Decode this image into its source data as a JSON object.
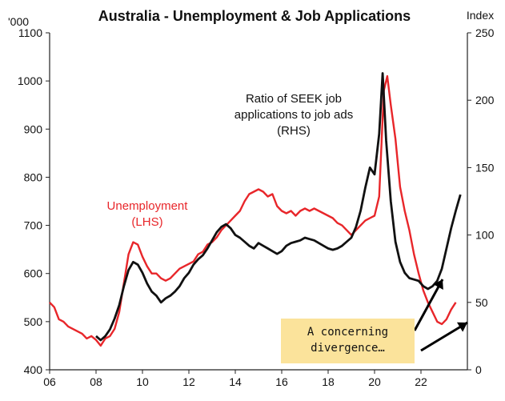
{
  "chart_data": {
    "type": "line",
    "title": "Australia - Unemployment & Job Applications",
    "y_left_unit": "'000",
    "y_right_unit": "Index",
    "y_left_range": [
      400,
      1100
    ],
    "y_right_range": [
      0,
      250
    ],
    "x_range": [
      2006,
      2024
    ],
    "x_ticks": [
      {
        "value": 2006,
        "label": "06"
      },
      {
        "value": 2008,
        "label": "08"
      },
      {
        "value": 2010,
        "label": "10"
      },
      {
        "value": 2012,
        "label": "12"
      },
      {
        "value": 2014,
        "label": "14"
      },
      {
        "value": 2016,
        "label": "16"
      },
      {
        "value": 2018,
        "label": "18"
      },
      {
        "value": 2020,
        "label": "20"
      },
      {
        "value": 2022,
        "label": "22"
      }
    ],
    "y_left_ticks": [
      400,
      500,
      600,
      700,
      800,
      900,
      1000,
      1100
    ],
    "y_right_ticks": [
      0,
      50,
      100,
      150,
      200,
      250
    ],
    "series": [
      {
        "name": "Unemployment",
        "label_lines": [
          "Unemployment",
          "(LHS)"
        ],
        "axis": "left",
        "color": "#e8262a",
        "points": [
          [
            2006.0,
            540
          ],
          [
            2006.2,
            530
          ],
          [
            2006.4,
            505
          ],
          [
            2006.6,
            500
          ],
          [
            2006.8,
            490
          ],
          [
            2007.0,
            485
          ],
          [
            2007.2,
            480
          ],
          [
            2007.4,
            475
          ],
          [
            2007.6,
            465
          ],
          [
            2007.8,
            470
          ],
          [
            2008.0,
            462
          ],
          [
            2008.2,
            450
          ],
          [
            2008.4,
            465
          ],
          [
            2008.6,
            470
          ],
          [
            2008.8,
            485
          ],
          [
            2009.0,
            520
          ],
          [
            2009.2,
            580
          ],
          [
            2009.4,
            640
          ],
          [
            2009.6,
            665
          ],
          [
            2009.8,
            660
          ],
          [
            2010.0,
            635
          ],
          [
            2010.2,
            615
          ],
          [
            2010.4,
            600
          ],
          [
            2010.6,
            600
          ],
          [
            2010.8,
            590
          ],
          [
            2011.0,
            585
          ],
          [
            2011.2,
            590
          ],
          [
            2011.4,
            600
          ],
          [
            2011.6,
            610
          ],
          [
            2011.8,
            615
          ],
          [
            2012.0,
            620
          ],
          [
            2012.2,
            625
          ],
          [
            2012.4,
            640
          ],
          [
            2012.6,
            645
          ],
          [
            2012.8,
            660
          ],
          [
            2013.0,
            665
          ],
          [
            2013.2,
            675
          ],
          [
            2013.4,
            690
          ],
          [
            2013.6,
            700
          ],
          [
            2013.8,
            710
          ],
          [
            2014.0,
            720
          ],
          [
            2014.2,
            730
          ],
          [
            2014.4,
            750
          ],
          [
            2014.6,
            765
          ],
          [
            2014.8,
            770
          ],
          [
            2015.0,
            775
          ],
          [
            2015.2,
            770
          ],
          [
            2015.4,
            760
          ],
          [
            2015.6,
            765
          ],
          [
            2015.8,
            740
          ],
          [
            2016.0,
            730
          ],
          [
            2016.2,
            725
          ],
          [
            2016.4,
            730
          ],
          [
            2016.6,
            720
          ],
          [
            2016.8,
            730
          ],
          [
            2017.0,
            735
          ],
          [
            2017.2,
            730
          ],
          [
            2017.4,
            735
          ],
          [
            2017.6,
            730
          ],
          [
            2017.8,
            725
          ],
          [
            2018.0,
            720
          ],
          [
            2018.2,
            715
          ],
          [
            2018.4,
            705
          ],
          [
            2018.6,
            700
          ],
          [
            2018.8,
            690
          ],
          [
            2019.0,
            680
          ],
          [
            2019.2,
            690
          ],
          [
            2019.4,
            700
          ],
          [
            2019.6,
            710
          ],
          [
            2019.8,
            715
          ],
          [
            2020.0,
            720
          ],
          [
            2020.2,
            760
          ],
          [
            2020.4,
            980
          ],
          [
            2020.55,
            1010
          ],
          [
            2020.7,
            950
          ],
          [
            2020.9,
            880
          ],
          [
            2021.1,
            780
          ],
          [
            2021.3,
            730
          ],
          [
            2021.5,
            690
          ],
          [
            2021.7,
            640
          ],
          [
            2021.9,
            600
          ],
          [
            2022.1,
            565
          ],
          [
            2022.3,
            540
          ],
          [
            2022.5,
            520
          ],
          [
            2022.7,
            500
          ],
          [
            2022.9,
            495
          ],
          [
            2023.1,
            505
          ],
          [
            2023.3,
            525
          ],
          [
            2023.5,
            540
          ]
        ]
      },
      {
        "name": "Ratio of SEEK job applications to job ads",
        "label_lines": [
          "Ratio of SEEK job",
          "applications to job ads",
          "(RHS)"
        ],
        "axis": "right",
        "color": "#111111",
        "points": [
          [
            2008.0,
            25
          ],
          [
            2008.2,
            22
          ],
          [
            2008.4,
            25
          ],
          [
            2008.6,
            30
          ],
          [
            2008.8,
            38
          ],
          [
            2009.0,
            48
          ],
          [
            2009.2,
            62
          ],
          [
            2009.4,
            74
          ],
          [
            2009.6,
            80
          ],
          [
            2009.8,
            78
          ],
          [
            2010.0,
            72
          ],
          [
            2010.2,
            64
          ],
          [
            2010.4,
            58
          ],
          [
            2010.6,
            55
          ],
          [
            2010.8,
            50
          ],
          [
            2011.0,
            53
          ],
          [
            2011.2,
            55
          ],
          [
            2011.4,
            58
          ],
          [
            2011.6,
            62
          ],
          [
            2011.8,
            68
          ],
          [
            2012.0,
            72
          ],
          [
            2012.2,
            78
          ],
          [
            2012.4,
            82
          ],
          [
            2012.6,
            85
          ],
          [
            2012.8,
            90
          ],
          [
            2013.0,
            96
          ],
          [
            2013.2,
            102
          ],
          [
            2013.4,
            106
          ],
          [
            2013.6,
            108
          ],
          [
            2013.8,
            105
          ],
          [
            2014.0,
            100
          ],
          [
            2014.2,
            98
          ],
          [
            2014.4,
            95
          ],
          [
            2014.6,
            92
          ],
          [
            2014.8,
            90
          ],
          [
            2015.0,
            94
          ],
          [
            2015.2,
            92
          ],
          [
            2015.4,
            90
          ],
          [
            2015.6,
            88
          ],
          [
            2015.8,
            86
          ],
          [
            2016.0,
            88
          ],
          [
            2016.2,
            92
          ],
          [
            2016.4,
            94
          ],
          [
            2016.6,
            95
          ],
          [
            2016.8,
            96
          ],
          [
            2017.0,
            98
          ],
          [
            2017.2,
            97
          ],
          [
            2017.4,
            96
          ],
          [
            2017.6,
            94
          ],
          [
            2017.8,
            92
          ],
          [
            2018.0,
            90
          ],
          [
            2018.2,
            89
          ],
          [
            2018.4,
            90
          ],
          [
            2018.6,
            92
          ],
          [
            2018.8,
            95
          ],
          [
            2019.0,
            98
          ],
          [
            2019.2,
            106
          ],
          [
            2019.4,
            118
          ],
          [
            2019.6,
            135
          ],
          [
            2019.8,
            150
          ],
          [
            2020.0,
            145
          ],
          [
            2020.2,
            175
          ],
          [
            2020.35,
            220
          ],
          [
            2020.5,
            170
          ],
          [
            2020.7,
            125
          ],
          [
            2020.9,
            95
          ],
          [
            2021.1,
            80
          ],
          [
            2021.3,
            72
          ],
          [
            2021.5,
            68
          ],
          [
            2021.7,
            67
          ],
          [
            2021.9,
            66
          ],
          [
            2022.1,
            62
          ],
          [
            2022.3,
            60
          ],
          [
            2022.5,
            62
          ],
          [
            2022.7,
            66
          ],
          [
            2022.9,
            75
          ],
          [
            2023.1,
            90
          ],
          [
            2023.3,
            105
          ],
          [
            2023.5,
            118
          ],
          [
            2023.7,
            130
          ]
        ]
      }
    ],
    "annotations": [
      {
        "lines": [
          "A concerning",
          "divergence…"
        ]
      }
    ],
    "annotation_bg": "#fbe39b",
    "grid": false,
    "legend": "none"
  }
}
